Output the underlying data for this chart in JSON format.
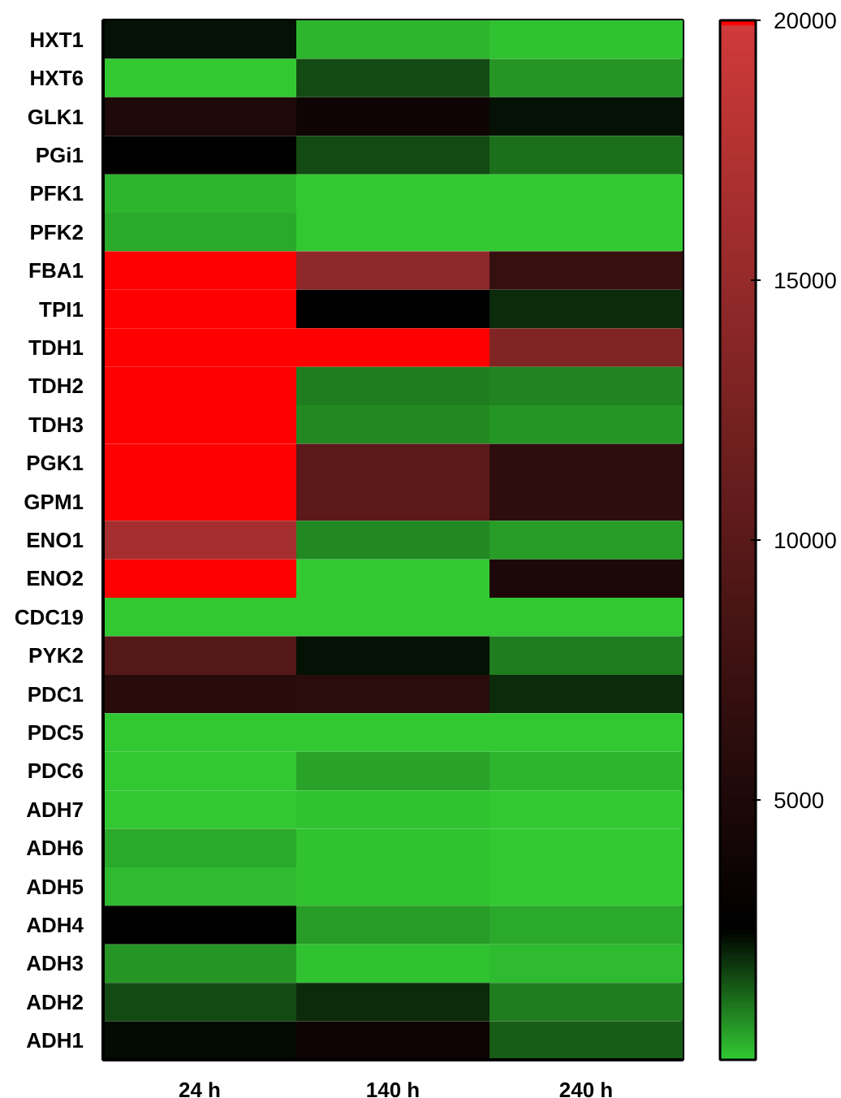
{
  "chart_data": {
    "type": "heatmap",
    "categories": [
      "24 h",
      "140 h",
      "240 h"
    ],
    "y_categories": [
      "HXT1",
      "HXT6",
      "GLK1",
      "PGi1",
      "PFK1",
      "PFK2",
      "FBA1",
      "TPI1",
      "TDH1",
      "TDH2",
      "TDH3",
      "PGK1",
      "GPM1",
      "ENO1",
      "ENO2",
      "CDC19",
      "PYK2",
      "PDC1",
      "PDC5",
      "PDC6",
      "ADH7",
      "ADH6",
      "ADH5",
      "ADH4",
      "ADH3",
      "ADH2",
      "ADH1"
    ],
    "cells": [
      [
        2300,
        250,
        100
      ],
      [
        50,
        1600,
        700
      ],
      [
        5000,
        3700,
        2300
      ],
      [
        2500,
        1600,
        1100
      ],
      [
        300,
        50,
        50
      ],
      [
        400,
        50,
        50
      ],
      [
        20000,
        14500,
        7000
      ],
      [
        20000,
        2500,
        2000
      ],
      [
        20000,
        20000,
        13200
      ],
      [
        20000,
        1000,
        900
      ],
      [
        20000,
        850,
        650
      ],
      [
        20000,
        10100,
        6300
      ],
      [
        20000,
        10100,
        6300
      ],
      [
        16400,
        800,
        550
      ],
      [
        20000,
        50,
        4900
      ],
      [
        50,
        50,
        0
      ],
      [
        9600,
        2300,
        950
      ],
      [
        5800,
        6000,
        2000
      ],
      [
        50,
        50,
        50
      ],
      [
        50,
        500,
        250
      ],
      [
        50,
        150,
        50
      ],
      [
        400,
        150,
        50
      ],
      [
        200,
        100,
        50
      ],
      [
        2500,
        600,
        400
      ],
      [
        650,
        150,
        200
      ],
      [
        1600,
        2000,
        1000
      ],
      [
        2400,
        3800,
        1400
      ]
    ],
    "clim": [
      0,
      20000
    ],
    "cticks": [
      5000,
      10000,
      15000,
      20000
    ]
  }
}
